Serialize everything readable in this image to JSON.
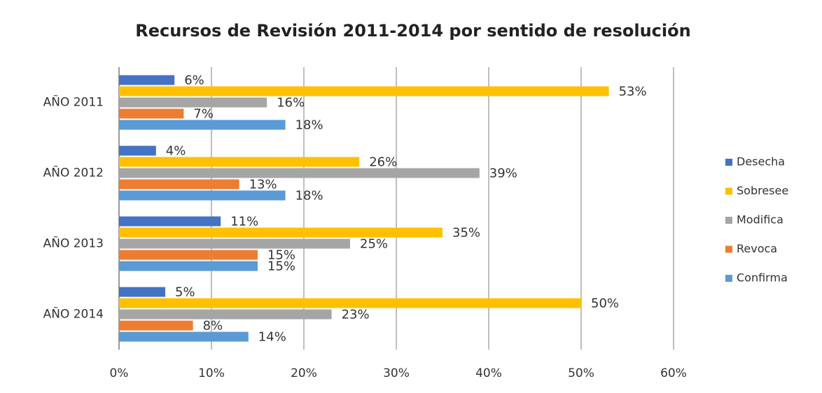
{
  "chart_data": {
    "type": "hbar",
    "title": "Recursos de Revisión 2011-2014 por sentido de resolución",
    "categories": [
      "AÑO 2011",
      "AÑO 2012",
      "AÑO 2013",
      "AÑO 2014"
    ],
    "series": [
      {
        "name": "Desecha",
        "color": "#4472c4",
        "values": [
          6,
          4,
          11,
          5
        ],
        "value_labels": [
          "6%",
          "4%",
          "11%",
          "5%"
        ]
      },
      {
        "name": "Sobresee",
        "color": "#ffc000",
        "values": [
          53,
          26,
          35,
          50
        ],
        "value_labels": [
          "53%",
          "26%",
          "35%",
          "50%"
        ]
      },
      {
        "name": "Modifica",
        "color": "#a5a5a5",
        "values": [
          16,
          39,
          25,
          23
        ],
        "value_labels": [
          "16%",
          "39%",
          "25%",
          "23%"
        ]
      },
      {
        "name": "Revoca",
        "color": "#ed7d31",
        "values": [
          7,
          13,
          15,
          8
        ],
        "value_labels": [
          "7%",
          "13%",
          "15%",
          "8%"
        ]
      },
      {
        "name": "Confirma",
        "color": "#5b9bd5",
        "values": [
          18,
          18,
          15,
          14
        ],
        "value_labels": [
          "18%",
          "18%",
          "15%",
          "14%"
        ]
      }
    ],
    "xlim": [
      0,
      60
    ],
    "xticks": [
      {
        "value": 0,
        "label": "0%"
      },
      {
        "value": 10,
        "label": "10%"
      },
      {
        "value": 20,
        "label": "20%"
      },
      {
        "value": 30,
        "label": "30%"
      },
      {
        "value": 40,
        "label": "40%"
      },
      {
        "value": 50,
        "label": "50%"
      },
      {
        "value": 60,
        "label": "60%"
      }
    ],
    "grid": true,
    "legend": "right"
  }
}
